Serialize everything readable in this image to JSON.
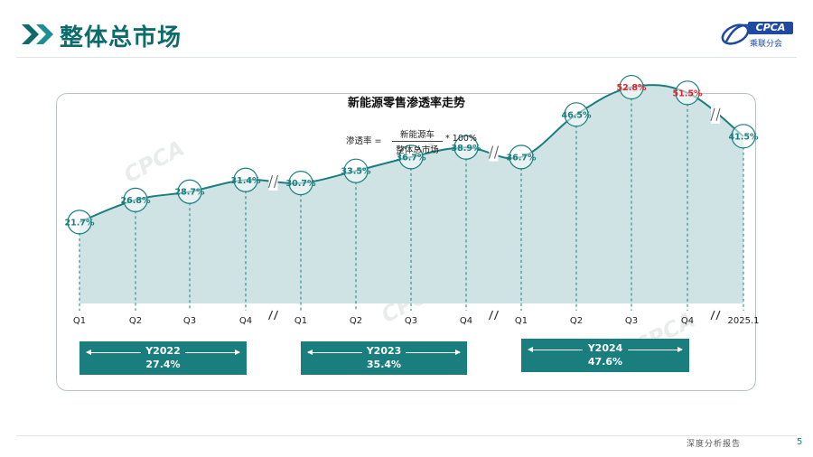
{
  "header": {
    "title": "整体总市场",
    "logo_text": "CPCA",
    "logo_subtext": "乘联分会"
  },
  "formula": {
    "left": "渗透率 =",
    "numerator": "新能源车",
    "denominator": "整体总市场",
    "right": "* 100%"
  },
  "chart_data": {
    "type": "area",
    "title": "新能源零售渗透率走势",
    "categories": [
      "Q1",
      "Q2",
      "Q3",
      "Q4",
      "Q1",
      "Q2",
      "Q3",
      "Q4",
      "Q1",
      "Q2",
      "Q3",
      "Q4",
      "2025.1"
    ],
    "series": [
      {
        "values": [
          21.7,
          26.8,
          28.7,
          31.4,
          30.7,
          33.5,
          36.7,
          38.9,
          36.7,
          46.5,
          52.8,
          51.5,
          41.5
        ],
        "labels": [
          "21.7%",
          "26.8%",
          "28.7%",
          "31.4%",
          "30.7%",
          "33.5%",
          "36.7%",
          "38.9%",
          "36.7%",
          "46.5%",
          "52.8%",
          "51.5%",
          "41.5%"
        ]
      }
    ],
    "highlight_labels": [
      10,
      11
    ],
    "highlight_color": "#e0262b",
    "label_color": "#1a7e7e",
    "line_color": "#1a7e7e",
    "fill_color": "#cfe2e4",
    "axis_breaks_after": [
      3,
      7,
      11
    ],
    "grid": false,
    "year_groups": [
      {
        "label": "Y2022",
        "value": "27.4%"
      },
      {
        "label": "Y2023",
        "value": "35.4%"
      },
      {
        "label": "Y2024",
        "value": "47.6%"
      }
    ]
  },
  "footer": {
    "label": "深度分析报告",
    "page": "5"
  },
  "colors": {
    "accent": "#1a7e7e",
    "title": "#0d6b6b",
    "highlight": "#e0262b"
  }
}
